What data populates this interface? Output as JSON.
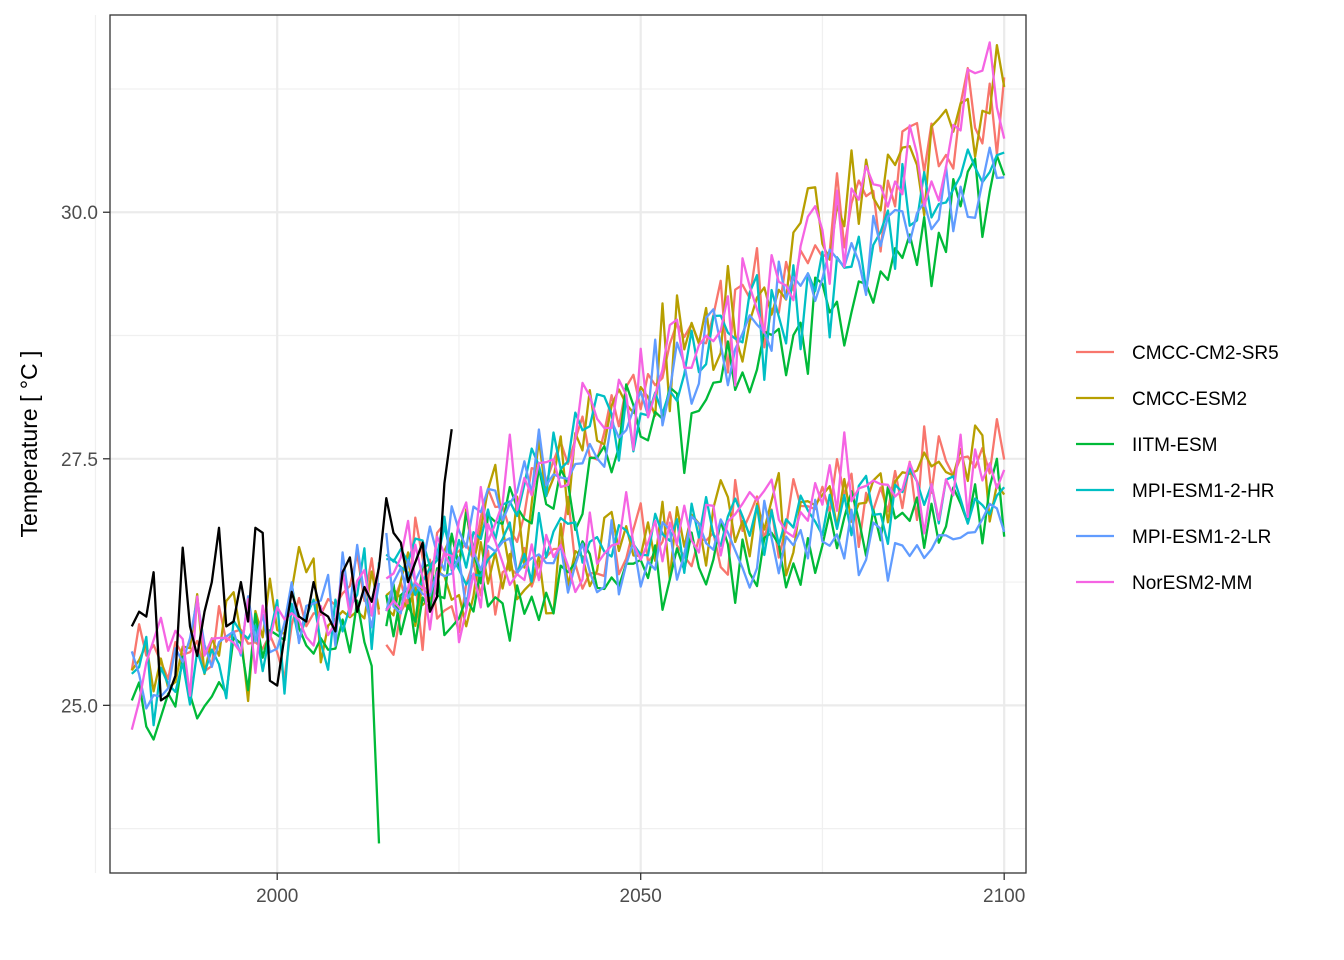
{
  "chart_data": {
    "type": "line",
    "title": "",
    "xlabel": "",
    "ylabel": "Temperature [ °C ]",
    "xlim": [
      1977,
      2103
    ],
    "ylim": [
      23.3,
      32.0
    ],
    "x_ticks": [
      {
        "value": 2000,
        "label": "2000"
      },
      {
        "value": 2050,
        "label": "2050"
      },
      {
        "value": 2100,
        "label": "2100"
      }
    ],
    "x_minor_ticks": [
      1975,
      2025,
      2075
    ],
    "y_ticks": [
      {
        "value": 25.0,
        "label": "25.0"
      },
      {
        "value": 27.5,
        "label": "27.5"
      },
      {
        "value": 30.0,
        "label": "30.0"
      }
    ],
    "y_minor_ticks": [
      23.75,
      26.25,
      28.75,
      31.25
    ],
    "grid": true,
    "legend_position": "right",
    "observed": {
      "color": "#000000",
      "x": [
        1980,
        1981,
        1982,
        1983,
        1984,
        1985,
        1986,
        1987,
        1988,
        1989,
        1990,
        1991,
        1992,
        1993,
        1994,
        1995,
        1996,
        1997,
        1998,
        1999,
        2000,
        2001,
        2002,
        2003,
        2004,
        2005,
        2006,
        2007,
        2008,
        2009,
        2010,
        2011,
        2012,
        2013,
        2014,
        2015,
        2016,
        2017,
        2018,
        2019,
        2020,
        2021,
        2022,
        2023,
        2024
      ],
      "y": [
        25.8,
        25.95,
        25.9,
        26.35,
        25.05,
        25.1,
        25.3,
        26.6,
        25.8,
        25.5,
        25.95,
        26.25,
        26.8,
        25.8,
        25.85,
        26.25,
        25.85,
        26.8,
        26.75,
        25.25,
        25.2,
        25.7,
        26.15,
        25.9,
        25.85,
        26.25,
        25.95,
        25.9,
        25.75,
        26.35,
        26.5,
        25.95,
        26.2,
        26.05,
        26.4,
        27.1,
        26.75,
        26.65,
        26.25,
        26.45,
        26.65,
        25.95,
        26.1,
        27.25,
        27.8
      ]
    },
    "series": [
      {
        "name": "CMCC-CM2-SR5",
        "color": "#F8766D",
        "hist_start": 1980,
        "hist_end": 2014,
        "hist_base": 25.3,
        "hist_slope": 0.025,
        "hist_noise": 0.45,
        "hi_base": 26.05,
        "hi_slope": 0.0605,
        "hi_noise": 0.42,
        "lo_base": 26.05,
        "lo_slope": 0.016,
        "lo_noise": 0.38
      },
      {
        "name": "CMCC-ESM2",
        "color": "#B79F00",
        "hist_start": 1980,
        "hist_end": 2014,
        "hist_base": 25.3,
        "hist_slope": 0.028,
        "hist_noise": 0.45,
        "hi_base": 26.05,
        "hi_slope": 0.062,
        "hi_noise": 0.45,
        "lo_base": 26.0,
        "lo_slope": 0.018,
        "lo_noise": 0.4
      },
      {
        "name": "IITM-ESM",
        "color": "#00BA38",
        "hist_start": 1980,
        "hist_end": 2014,
        "hist_base": 25.0,
        "hist_slope": 0.028,
        "hist_noise": 0.4,
        "hi_base": 25.9,
        "hi_slope": 0.052,
        "hi_noise": 0.4,
        "lo_base": 25.9,
        "lo_slope": 0.013,
        "lo_noise": 0.35
      },
      {
        "name": "MPI-ESM1-2-HR",
        "color": "#00BFC4",
        "hist_start": 1980,
        "hist_end": 2014,
        "hist_base": 25.2,
        "hist_slope": 0.026,
        "hist_noise": 0.4,
        "hi_base": 26.3,
        "hi_slope": 0.05,
        "hi_noise": 0.38,
        "lo_base": 26.4,
        "lo_slope": 0.008,
        "lo_noise": 0.32
      },
      {
        "name": "MPI-ESM1-2-LR",
        "color": "#619CFF",
        "hist_start": 1980,
        "hist_end": 2014,
        "hist_base": 25.3,
        "hist_slope": 0.024,
        "hist_noise": 0.4,
        "hi_base": 26.2,
        "hi_slope": 0.051,
        "hi_noise": 0.38,
        "lo_base": 26.3,
        "lo_slope": 0.006,
        "lo_noise": 0.35
      },
      {
        "name": "NorESM2-MM",
        "color": "#F564E3",
        "hist_start": 1980,
        "hist_end": 2014,
        "hist_base": 25.3,
        "hist_slope": 0.03,
        "hist_noise": 0.45,
        "hi_base": 26.1,
        "hi_slope": 0.06,
        "hi_noise": 0.45,
        "lo_base": 26.1,
        "lo_slope": 0.016,
        "lo_noise": 0.4
      }
    ]
  }
}
